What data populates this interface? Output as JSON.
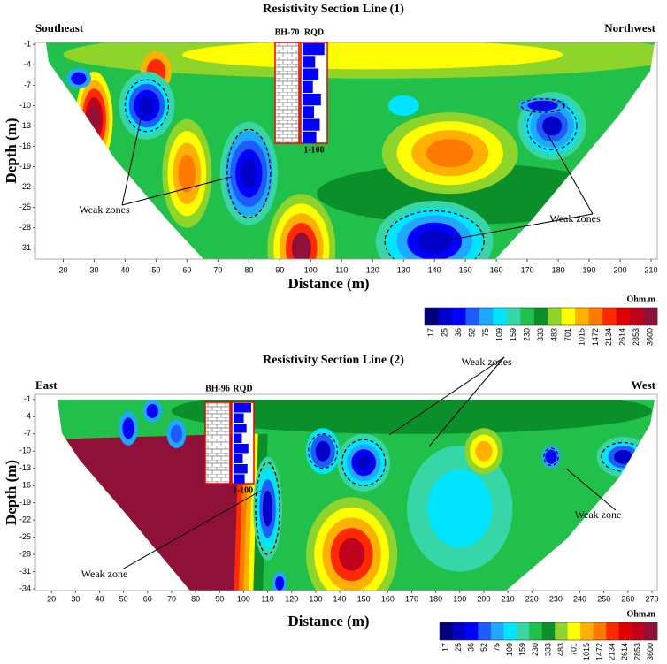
{
  "chart_data": [
    {
      "type": "contour",
      "title": "Resistivity Section Line (1)",
      "left_label": "Southeast",
      "right_label": "Northwest",
      "x_label": "Distance (m)",
      "y_label": "Depth (m)",
      "xlim": [
        11,
        212
      ],
      "ylim": [
        -32.6,
        -0.7
      ],
      "xticks": [
        20,
        30,
        40,
        50,
        60,
        70,
        80,
        90,
        100,
        110,
        120,
        130,
        140,
        150,
        160,
        170,
        180,
        190,
        200,
        210
      ],
      "yticks": [
        -1,
        -4,
        -7,
        -10,
        -13,
        -16,
        -19,
        -22,
        -25,
        -28,
        -31
      ],
      "borehole": "BH-70",
      "rqd": "RQD",
      "rqd_range": "1-100",
      "weak_labels": [
        "Weak zones",
        "Weak zones"
      ],
      "colorbar": {
        "title": "Ohm.m",
        "levels": [
          17,
          25,
          36,
          52,
          75,
          109,
          159,
          230,
          333,
          483,
          701,
          1015,
          1472,
          2134,
          2614,
          2853,
          3600
        ],
        "colors": [
          "#00007a",
          "#0000c8",
          "#0000ff",
          "#1f5cff",
          "#1fa8ff",
          "#00e5ff",
          "#36d6a6",
          "#20c04a",
          "#0b8f2a",
          "#8fd42a",
          "#ffff00",
          "#ffb000",
          "#ff7a00",
          "#ff2a00",
          "#e00000",
          "#c0001c",
          "#8f1038"
        ]
      }
    },
    {
      "type": "contour",
      "title": "Resistivity Section Line (2)",
      "left_label": "East",
      "right_label": "West",
      "x_label": "Distance (m)",
      "y_label": "Depth (m)",
      "xlim": [
        13.3,
        272.2
      ],
      "ylim": [
        -34.3,
        -0.1
      ],
      "xticks": [
        20,
        30,
        40,
        50,
        60,
        70,
        80,
        90,
        100,
        110,
        120,
        130,
        140,
        150,
        160,
        170,
        180,
        190,
        200,
        210,
        220,
        230,
        240,
        250,
        260,
        270
      ],
      "yticks": [
        -1,
        -4,
        -7,
        -10,
        -13,
        -16,
        -19,
        -22,
        -25,
        -28,
        -31,
        -34
      ],
      "borehole": "BH-96",
      "rqd": "RQD",
      "rqd_range": "1-100",
      "weak_labels": [
        "Weak zones",
        "Weak zone",
        "Weak zone"
      ],
      "colorbar": {
        "title": "Ohm.m",
        "levels": [
          17,
          25,
          36,
          52,
          75,
          109,
          159,
          230,
          333,
          483,
          701,
          1015,
          1472,
          2134,
          2614,
          2853,
          3600
        ],
        "colors": [
          "#00007a",
          "#0000c8",
          "#0000ff",
          "#1f5cff",
          "#1fa8ff",
          "#00e5ff",
          "#36d6a6",
          "#20c04a",
          "#0b8f2a",
          "#8fd42a",
          "#ffff00",
          "#ffb000",
          "#ff7a00",
          "#ff2a00",
          "#e00000",
          "#c0001c",
          "#8f1038"
        ]
      }
    }
  ]
}
